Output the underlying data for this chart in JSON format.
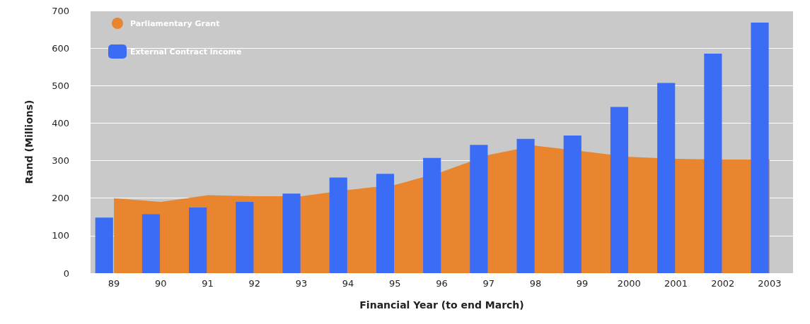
{
  "chart_data": {
    "type": "bar",
    "xlabel": "Financial Year (to end March)",
    "ylabel": "Rand (Millions)",
    "categories": [
      "89",
      "90",
      "91",
      "92",
      "93",
      "94",
      "95",
      "96",
      "97",
      "98",
      "99",
      "2000",
      "2001",
      "2002",
      "2003"
    ],
    "series": [
      {
        "name": "Parliamentary Grant",
        "type": "area",
        "color": "#e8852e",
        "values": [
          200,
          190,
          208,
          205,
          205,
          222,
          235,
          270,
          315,
          340,
          325,
          310,
          305,
          303,
          303
        ]
      },
      {
        "name": "External Contract income",
        "color": "#3a6cf5",
        "values": [
          148,
          157,
          175,
          190,
          212,
          255,
          265,
          307,
          342,
          358,
          367,
          443,
          507,
          585,
          668
        ]
      }
    ],
    "ylim": [
      0,
      700
    ],
    "yticks": [
      0,
      100,
      200,
      300,
      400,
      500,
      600,
      700
    ],
    "grid": "y",
    "legend": "top left"
  }
}
